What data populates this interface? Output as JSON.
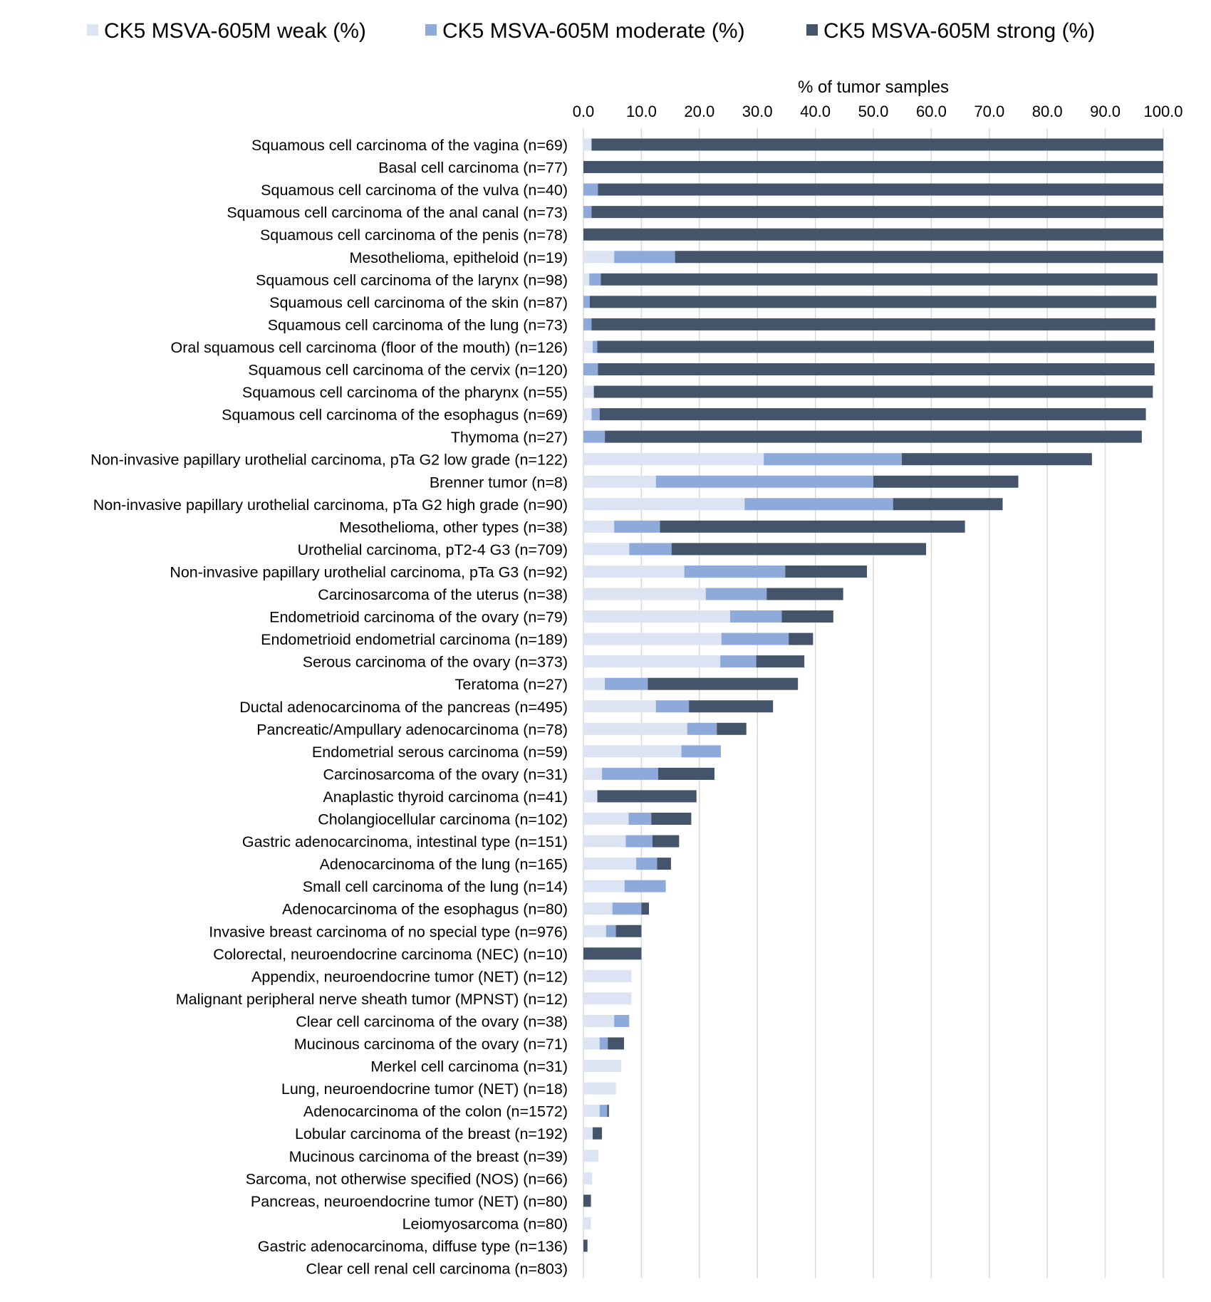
{
  "chart_data": {
    "type": "bar",
    "orientation": "horizontal",
    "stacked": true,
    "title": "",
    "xlabel": "% of tumor samples",
    "ylabel": "",
    "xlim": [
      0,
      100
    ],
    "xticks": [
      "0.0",
      "10.0",
      "20.0",
      "30.0",
      "40.0",
      "50.0",
      "60.0",
      "70.0",
      "80.0",
      "90.0",
      "100.0"
    ],
    "x_axis_position": "top",
    "grid": "vertical",
    "legend_position": "top",
    "categories": [
      "Squamous cell carcinoma of the vagina (n=69)",
      "Basal cell carcinoma (n=77)",
      "Squamous cell carcinoma of the vulva (n=40)",
      "Squamous cell carcinoma of the anal canal (n=73)",
      "Squamous cell carcinoma of the penis (n=78)",
      "Mesothelioma, epitheloid (n=19)",
      "Squamous cell carcinoma of the larynx (n=98)",
      "Squamous cell carcinoma of the skin (n=87)",
      "Squamous cell carcinoma of the lung (n=73)",
      "Oral squamous cell carcinoma (floor of the mouth) (n=126)",
      "Squamous cell carcinoma of the cervix (n=120)",
      "Squamous cell carcinoma of the pharynx (n=55)",
      "Squamous cell carcinoma of the esophagus (n=69)",
      "Thymoma (n=27)",
      "Non-invasive papillary urothelial carcinoma, pTa G2 low grade (n=122)",
      "Brenner tumor (n=8)",
      "Non-invasive papillary urothelial carcinoma, pTa G2 high grade (n=90)",
      "Mesothelioma, other types (n=38)",
      "Urothelial carcinoma, pT2-4 G3 (n=709)",
      "Non-invasive papillary urothelial carcinoma, pTa G3 (n=92)",
      "Carcinosarcoma of the uterus (n=38)",
      "Endometrioid carcinoma of the ovary (n=79)",
      "Endometrioid endometrial carcinoma (n=189)",
      "Serous carcinoma of the ovary (n=373)",
      "Teratoma (n=27)",
      "Ductal adenocarcinoma of the pancreas (n=495)",
      "Pancreatic/Ampullary adenocarcinoma (n=78)",
      "Endometrial serous carcinoma (n=59)",
      "Carcinosarcoma of the ovary (n=31)",
      "Anaplastic thyroid carcinoma (n=41)",
      "Cholangiocellular carcinoma (n=102)",
      "Gastric adenocarcinoma, intestinal type (n=151)",
      "Adenocarcinoma of the lung (n=165)",
      "Small cell carcinoma of the lung (n=14)",
      "Adenocarcinoma of the esophagus (n=80)",
      "Invasive breast carcinoma of no special type (n=976)",
      "Colorectal, neuroendocrine carcinoma (NEC) (n=10)",
      "Appendix, neuroendocrine tumor (NET) (n=12)",
      "Malignant peripheral nerve sheath tumor (MPNST) (n=12)",
      "Clear cell carcinoma of the ovary (n=38)",
      "Mucinous carcinoma of the ovary (n=71)",
      "Merkel cell carcinoma (n=31)",
      "Lung, neuroendocrine tumor (NET) (n=18)",
      "Adenocarcinoma of the colon (n=1572)",
      "Lobular carcinoma of the breast (n=192)",
      "Mucinous carcinoma of the breast (n=39)",
      "Sarcoma, not otherwise specified (NOS) (n=66)",
      "Pancreas, neuroendocrine tumor (NET) (n=80)",
      "Leiomyosarcoma (n=80)",
      "Gastric adenocarcinoma, diffuse type (n=136)",
      "Clear cell renal cell carcinoma (n=803)"
    ],
    "series": [
      {
        "name": "CK5 MSVA-605M weak (%)",
        "color": "#dce3f3",
        "values": [
          1.4,
          0.0,
          0.0,
          0.0,
          0.0,
          5.3,
          1.0,
          0.0,
          0.0,
          1.6,
          0.0,
          1.8,
          1.4,
          0.0,
          31.1,
          12.5,
          27.8,
          5.3,
          7.9,
          17.4,
          21.1,
          25.3,
          23.8,
          23.6,
          3.7,
          12.5,
          17.9,
          16.9,
          3.2,
          2.4,
          7.8,
          7.3,
          9.1,
          7.1,
          5.0,
          3.9,
          0.0,
          8.3,
          8.3,
          5.3,
          2.8,
          6.5,
          5.6,
          2.8,
          1.6,
          2.6,
          1.5,
          0.0,
          1.3,
          0.0,
          0.0
        ]
      },
      {
        "name": "CK5 MSVA-605M moderate (%)",
        "color": "#8eaadb",
        "values": [
          0.0,
          0.0,
          2.5,
          1.4,
          0.0,
          10.5,
          2.0,
          1.1,
          1.4,
          0.8,
          2.5,
          0.0,
          1.4,
          3.7,
          23.8,
          37.5,
          25.6,
          7.9,
          7.3,
          17.4,
          10.5,
          8.9,
          11.6,
          6.2,
          7.4,
          5.7,
          5.1,
          6.8,
          9.7,
          0.0,
          3.9,
          4.6,
          3.6,
          7.1,
          5.0,
          1.7,
          0.0,
          0.0,
          0.0,
          2.6,
          1.4,
          0.0,
          0.0,
          1.3,
          0.0,
          0.0,
          0.0,
          0.0,
          0.0,
          0.0,
          0.0
        ]
      },
      {
        "name": "CK5 MSVA-605M strong (%)",
        "color": "#44546a",
        "values": [
          98.6,
          100.0,
          97.5,
          98.6,
          100.0,
          84.2,
          96.0,
          97.7,
          97.2,
          96.0,
          96.0,
          96.4,
          94.2,
          92.6,
          32.8,
          25.0,
          18.9,
          52.6,
          43.9,
          14.1,
          13.2,
          8.9,
          4.2,
          8.3,
          25.9,
          14.5,
          5.1,
          0.0,
          9.7,
          17.1,
          6.9,
          4.6,
          2.4,
          0.0,
          1.3,
          4.4,
          10.0,
          0.0,
          0.0,
          0.0,
          2.8,
          0.0,
          0.0,
          0.3,
          1.6,
          0.0,
          0.0,
          1.3,
          0.0,
          0.7,
          0.0
        ]
      }
    ]
  }
}
